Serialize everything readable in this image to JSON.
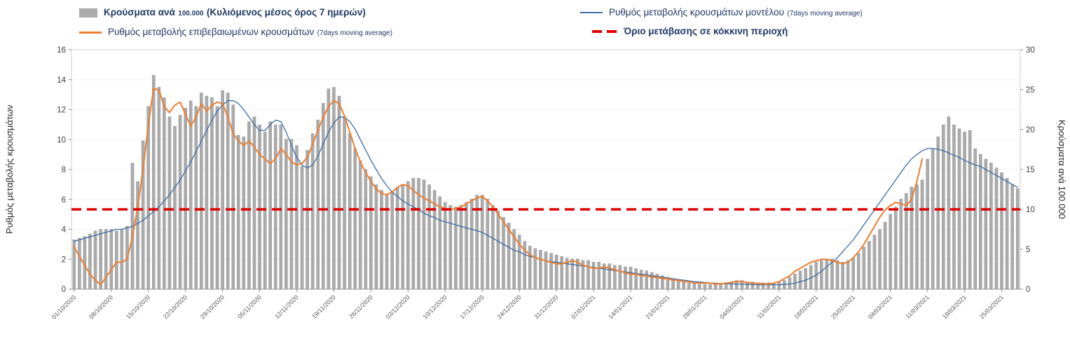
{
  "colors": {
    "bar": "#ababab",
    "bar_stroke": "#8f8f8f",
    "model": "#3d6ba5",
    "confirmed": "#ed7d31",
    "threshold": "#e00000",
    "legend_text": "#203864",
    "tick_text": "#404040",
    "date_text": "#595959"
  },
  "legend": {
    "bars": {
      "label_main": "Κρούσματα ανά",
      "label_small": "100.000",
      "label_bold": "(Κυλιόμενος μέσος όρος 7 ημερών)"
    },
    "model": {
      "label_main": "Ρυθμός μεταβολής κρουσμάτων μοντέλου",
      "label_small": "(7days moving average)"
    },
    "confirmed": {
      "label_main": "Ρυθμός μεταβολής επιβεβαιωμένων κρουσμάτων",
      "label_small": "(7days moving average)"
    },
    "threshold": {
      "label_main": "Όριο μετάβασης σε κόκκινη περιοχή"
    }
  },
  "axes": {
    "left_label": "Ρυθμός μεταβολής κρουσμάτων",
    "right_label": "Κρούσματα ανά 100.000"
  },
  "chart_data": {
    "type": "bar",
    "subtype": "mixed bar + line, dual y-axis",
    "grid": "frame with faint horizontal gridlines",
    "legend_position": "top",
    "x_tick_every": 7,
    "x_tick_labels": [
      "01/10/2020",
      "08/10/2020",
      "15/10/2020",
      "22/10/2020",
      "29/10/2020",
      "05/11/2020",
      "12/11/2020",
      "19/11/2020",
      "26/11/2020",
      "03/12/2020",
      "10/12/2020",
      "17/12/2020",
      "24/12/2020",
      "31/12/2020",
      "07/01/2021",
      "14/01/2021",
      "21/01/2021",
      "28/01/2021",
      "04/02/2021",
      "11/02/2021",
      "18/02/2021",
      "25/02/2021",
      "04/03/2021",
      "11/03/2021",
      "18/03/2021",
      "25/03/2021"
    ],
    "left_axis": {
      "label": "Ρυθμός μεταβολής κρουσμάτων",
      "min": 0,
      "max": 16,
      "ticks": [
        0,
        2,
        4,
        6,
        8,
        10,
        12,
        14,
        16
      ]
    },
    "right_axis": {
      "label": "Κρούσματα ανά 100.000",
      "min": 0,
      "max": 30,
      "ticks": [
        0,
        5,
        10,
        15,
        20,
        25,
        30
      ]
    },
    "bars": {
      "name": "Κρούσματα ανά 100.000 (Κυλιόμενος μέσος όρος 7 ημερών)",
      "axis": "right",
      "color": "#ababab",
      "stroke": "#8f8f8f",
      "values": [
        6.2,
        6.4,
        6.6,
        6.9,
        7.3,
        7.5,
        7.5,
        7.5,
        7.3,
        7.5,
        7.9,
        15.8,
        13.5,
        18.6,
        22.9,
        26.8,
        25.3,
        24,
        21.6,
        20.4,
        21.8,
        22.7,
        23.6,
        22.9,
        24.6,
        24.2,
        24,
        22.9,
        24.9,
        24.6,
        23.1,
        19.3,
        19.1,
        21,
        21.6,
        20.6,
        19.7,
        21,
        20.6,
        20.6,
        18.8,
        18.8,
        18,
        15.4,
        17.4,
        19.5,
        21.2,
        23.3,
        25.1,
        25.3,
        24.2,
        21.6,
        19.5,
        17.6,
        16.1,
        15,
        14.1,
        13.1,
        12.4,
        11.8,
        12.2,
        12.8,
        13.1,
        13.5,
        13.9,
        13.9,
        13.7,
        13.1,
        12.4,
        11.6,
        10.9,
        10.5,
        10.3,
        10.5,
        10.9,
        11.3,
        11.8,
        11.8,
        11.3,
        10.5,
        9.8,
        9,
        8.3,
        7.5,
        6.8,
        6,
        5.4,
        5.1,
        4.9,
        4.7,
        4.5,
        4.3,
        4.1,
        3.9,
        3.8,
        3.8,
        3.6,
        3.6,
        3.4,
        3.4,
        3.2,
        3.2,
        3,
        3,
        2.8,
        2.8,
        2.6,
        2.4,
        2.3,
        2.1,
        1.9,
        1.7,
        1.5,
        1.3,
        1.1,
        0.9,
        0.8,
        0.7,
        0.6,
        0.6,
        0.6,
        0.6,
        0.6,
        0.8,
        0.9,
        1.1,
        1.1,
        0.9,
        0.9,
        0.8,
        0.8,
        0.8,
        0.8,
        0.9,
        1.1,
        1.5,
        1.9,
        2.3,
        2.6,
        3,
        3.4,
        3.6,
        3.8,
        3.8,
        3.6,
        3.4,
        3.6,
        3.9,
        4.5,
        5.3,
        6,
        6.8,
        7.5,
        8.4,
        9.4,
        10.3,
        11.3,
        12,
        12.8,
        13.1,
        13.7,
        16.3,
        17.6,
        19.1,
        20.6,
        21.6,
        20.6,
        20.1,
        19.7,
        19.9,
        17.6,
        16.9,
        16.3,
        15.8,
        15.2,
        14.6,
        13.9,
        13.1,
        12.6
      ]
    },
    "series": [
      {
        "name": "Ρυθμός μεταβολής κρουσμάτων μοντέλου (7days moving average)",
        "data_name": "model-rate-line",
        "axis": "left",
        "color": "#3d6ba5",
        "width": 1.3,
        "values": [
          3.2,
          3.3,
          3.4,
          3.5,
          3.6,
          3.7,
          3.8,
          3.9,
          4,
          4,
          4.1,
          4.2,
          4.4,
          4.6,
          4.9,
          5.2,
          5.5,
          5.9,
          6.3,
          6.8,
          7.3,
          7.9,
          8.5,
          9.2,
          9.9,
          10.6,
          11.3,
          11.9,
          12.3,
          12.6,
          12.6,
          12.4,
          12,
          11.5,
          11,
          10.6,
          10.6,
          11,
          11.3,
          11.2,
          10.5,
          9.6,
          8.8,
          8.3,
          8.1,
          8.3,
          8.9,
          9.7,
          10.5,
          11.1,
          11.5,
          11.5,
          11.2,
          10.7,
          10,
          9.3,
          8.6,
          8,
          7.4,
          6.9,
          6.5,
          6.2,
          5.9,
          5.7,
          5.5,
          5.3,
          5.1,
          4.9,
          4.8,
          4.6,
          4.5,
          4.4,
          4.3,
          4.2,
          4.1,
          4,
          3.9,
          3.8,
          3.6,
          3.4,
          3.2,
          3,
          2.8,
          2.6,
          2.5,
          2.3,
          2.2,
          2.1,
          2,
          1.9,
          1.85,
          1.8,
          1.75,
          1.7,
          1.65,
          1.6,
          1.55,
          1.5,
          1.45,
          1.4,
          1.35,
          1.3,
          1.25,
          1.2,
          1.15,
          1.1,
          1.05,
          1,
          0.95,
          0.9,
          0.85,
          0.8,
          0.75,
          0.7,
          0.65,
          0.6,
          0.55,
          0.5,
          0.48,
          0.45,
          0.42,
          0.4,
          0.38,
          0.36,
          0.35,
          0.34,
          0.33,
          0.32,
          0.31,
          0.3,
          0.3,
          0.3,
          0.3,
          0.3,
          0.32,
          0.35,
          0.4,
          0.5,
          0.6,
          0.75,
          0.95,
          1.2,
          1.5,
          1.8,
          2.1,
          2.5,
          2.9,
          3.3,
          3.8,
          4.3,
          4.8,
          5.3,
          5.8,
          6.3,
          6.8,
          7.3,
          7.8,
          8.3,
          8.7,
          9,
          9.25,
          9.4,
          9.4,
          9.35,
          9.25,
          9.1,
          8.95,
          8.8,
          8.6,
          8.45,
          8.3,
          8.2,
          8,
          7.8,
          7.6,
          7.4,
          7.2,
          7,
          6.8
        ]
      },
      {
        "name": "Ρυθμός μεταβολής επιβεβαιωμένων κρουσμάτων (7days moving average)",
        "data_name": "confirmed-rate-line",
        "axis": "left",
        "color": "#ed7d31",
        "width": 2,
        "values": [
          2.8,
          2.2,
          1.6,
          1,
          0.6,
          0.3,
          0.8,
          1.3,
          1.8,
          1.8,
          2,
          3.5,
          5.5,
          8,
          11,
          13.4,
          13.3,
          12.2,
          11.8,
          12.3,
          12.5,
          11.7,
          10.9,
          11.5,
          12.4,
          11.9,
          12.3,
          12.5,
          12.4,
          11.5,
          10.4,
          9.9,
          9.6,
          9.9,
          9.5,
          9,
          8.7,
          8.4,
          8.7,
          9.4,
          9,
          8.5,
          8.3,
          8.4,
          8.8,
          9.7,
          10.6,
          11.5,
          12.2,
          12.6,
          12.4,
          11.6,
          10.5,
          9.4,
          8.5,
          7.8,
          7.2,
          6.7,
          6.4,
          6.3,
          6.5,
          6.8,
          7,
          6.9,
          6.6,
          6.3,
          6.1,
          5.9,
          5.7,
          5.5,
          5.4,
          5.3,
          5.4,
          5.5,
          5.7,
          5.9,
          6.1,
          6.2,
          5.9,
          5.5,
          5,
          4.5,
          4,
          3.5,
          3,
          2.6,
          2.3,
          2.1,
          2,
          1.9,
          1.8,
          1.7,
          1.7,
          1.8,
          1.9,
          1.8,
          1.6,
          1.5,
          1.4,
          1.4,
          1.5,
          1.4,
          1.3,
          1.2,
          1.1,
          1,
          1,
          0.9,
          0.9,
          0.8,
          0.8,
          0.7,
          0.7,
          0.6,
          0.6,
          0.5,
          0.5,
          0.4,
          0.4,
          0.4,
          0.4,
          0.35,
          0.35,
          0.4,
          0.45,
          0.5,
          0.5,
          0.45,
          0.4,
          0.4,
          0.35,
          0.35,
          0.4,
          0.5,
          0.7,
          0.9,
          1.2,
          1.4,
          1.6,
          1.8,
          1.9,
          2,
          2,
          1.9,
          1.8,
          1.7,
          1.8,
          2.1,
          2.5,
          3,
          3.6,
          4.2,
          4.8,
          5.3,
          5.6,
          5.8,
          5.7,
          5.6,
          6,
          7.2,
          8.7,
          null,
          null,
          null,
          null,
          null,
          null,
          null,
          null,
          null,
          null,
          null,
          null,
          null,
          null,
          null,
          null,
          null,
          null
        ]
      }
    ],
    "threshold": {
      "name": "Όριο μετάβασης σε κόκκινη περιοχή",
      "axis": "right",
      "value": 10,
      "color": "#e00000"
    }
  }
}
